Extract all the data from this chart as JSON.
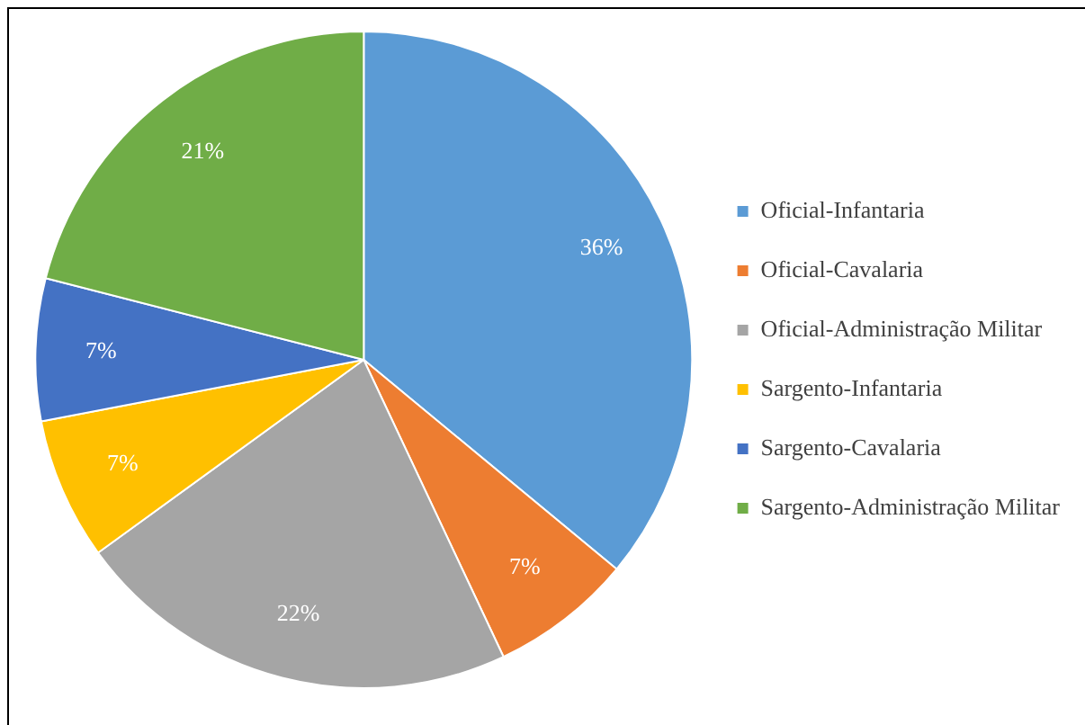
{
  "chart_data": {
    "type": "pie",
    "categories": [
      "Oficial-Infantaria",
      "Oficial-Cavalaria",
      "Oficial-Administração Militar",
      "Sargento-Infantaria",
      "Sargento-Cavalaria",
      "Sargento-Administração Militar"
    ],
    "values": [
      36,
      7,
      22,
      7,
      7,
      21
    ],
    "value_labels": [
      "36%",
      "7%",
      "22%",
      "7%",
      "7%",
      "21%"
    ],
    "colors": [
      "#5b9bd5",
      "#ed7d31",
      "#a5a5a5",
      "#ffc000",
      "#4472c4",
      "#70ad47"
    ],
    "legend": "right"
  }
}
